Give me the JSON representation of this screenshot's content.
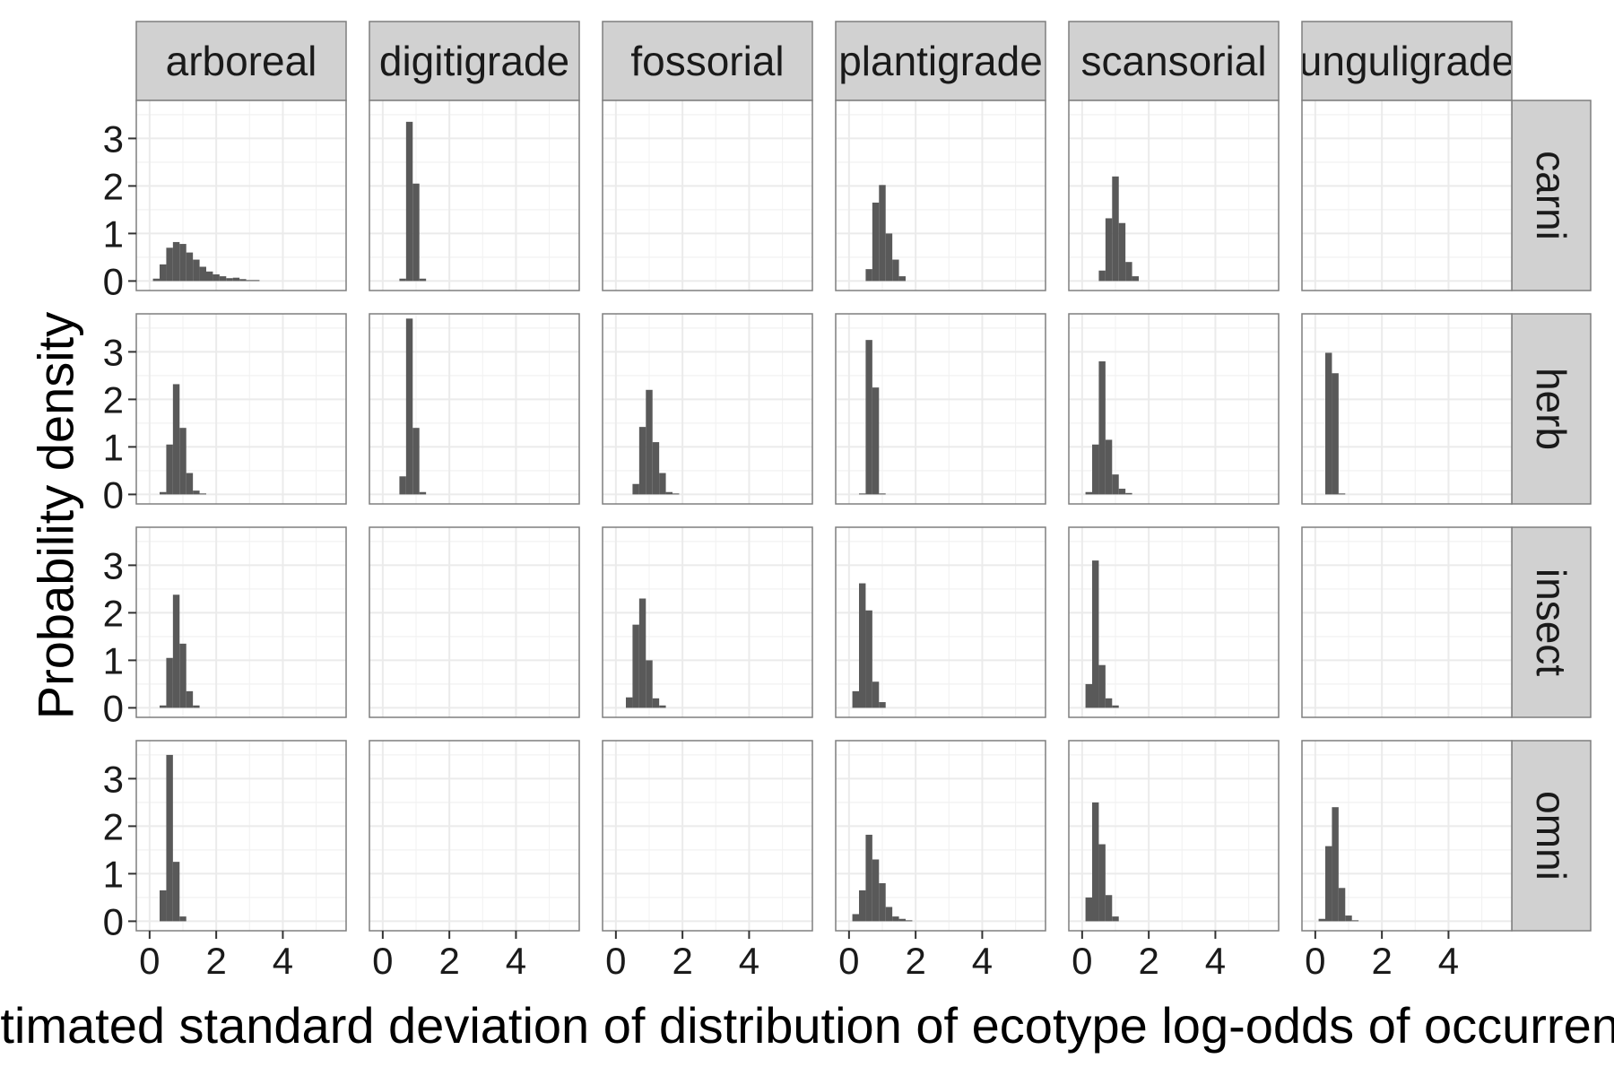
{
  "chart_data": {
    "type": "histogram-facet-grid",
    "xlabel": "Estimated standard deviation of distribution of ecotype log-odds of occurrence",
    "ylabel": "Probability density",
    "columns": [
      "arboreal",
      "digitigrade",
      "fossorial",
      "plantigrade",
      "scansorial",
      "unguligrade"
    ],
    "rows": [
      "carni",
      "herb",
      "insect",
      "omni"
    ],
    "xlim": [
      -0.4,
      5.9
    ],
    "ylim": [
      -0.2,
      3.8
    ],
    "x_ticks": [
      0,
      2,
      4
    ],
    "y_ticks": [
      0,
      1,
      2,
      3
    ],
    "x_tick_labels": [
      "0",
      "2",
      "4"
    ],
    "y_tick_labels": [
      "0",
      "1",
      "2",
      "3"
    ],
    "grid": true,
    "bar_color": "#595959",
    "panel_background": "#ffffff",
    "grid_color": "#ebebeb",
    "strip_background": "#d1d1d1",
    "panels": [
      {
        "row": "carni",
        "col": "arboreal",
        "bin_start": 0.1,
        "bin_width": 0.2,
        "values": [
          0.05,
          0.35,
          0.7,
          0.82,
          0.78,
          0.6,
          0.45,
          0.3,
          0.2,
          0.14,
          0.1,
          0.06,
          0.07,
          0.04,
          0.02,
          0.02
        ]
      },
      {
        "row": "carni",
        "col": "digitigrade",
        "bin_start": 0.5,
        "bin_width": 0.2,
        "values": [
          0.05,
          3.35,
          2.05,
          0.05
        ]
      },
      {
        "row": "carni",
        "col": "fossorial",
        "bin_start": 0,
        "bin_width": 0.2,
        "values": []
      },
      {
        "row": "carni",
        "col": "plantigrade",
        "bin_start": 0.5,
        "bin_width": 0.2,
        "values": [
          0.25,
          1.65,
          2.02,
          1.0,
          0.45,
          0.1
        ]
      },
      {
        "row": "carni",
        "col": "scansorial",
        "bin_start": 0.5,
        "bin_width": 0.2,
        "values": [
          0.22,
          1.32,
          2.2,
          1.22,
          0.4,
          0.1
        ]
      },
      {
        "row": "carni",
        "col": "unguligrade",
        "bin_start": 0,
        "bin_width": 0.2,
        "values": []
      },
      {
        "row": "herb",
        "col": "arboreal",
        "bin_start": 0.3,
        "bin_width": 0.2,
        "values": [
          0.05,
          1.05,
          2.32,
          1.4,
          0.45,
          0.08,
          0.02
        ]
      },
      {
        "row": "herb",
        "col": "digitigrade",
        "bin_start": 0.5,
        "bin_width": 0.2,
        "values": [
          0.38,
          3.7,
          1.4,
          0.05
        ]
      },
      {
        "row": "herb",
        "col": "fossorial",
        "bin_start": 0.5,
        "bin_width": 0.2,
        "values": [
          0.22,
          1.42,
          2.2,
          1.1,
          0.45,
          0.05,
          0.02
        ]
      },
      {
        "row": "herb",
        "col": "plantigrade",
        "bin_start": 0.3,
        "bin_width": 0.2,
        "values": [
          0.02,
          3.25,
          2.25,
          0.02
        ]
      },
      {
        "row": "herb",
        "col": "scansorial",
        "bin_start": 0.1,
        "bin_width": 0.2,
        "values": [
          0.05,
          1.05,
          2.8,
          1.15,
          0.42,
          0.12,
          0.03
        ]
      },
      {
        "row": "herb",
        "col": "unguligrade",
        "bin_start": 0.3,
        "bin_width": 0.2,
        "values": [
          2.98,
          2.55,
          0.02
        ]
      }
    ]
  }
}
